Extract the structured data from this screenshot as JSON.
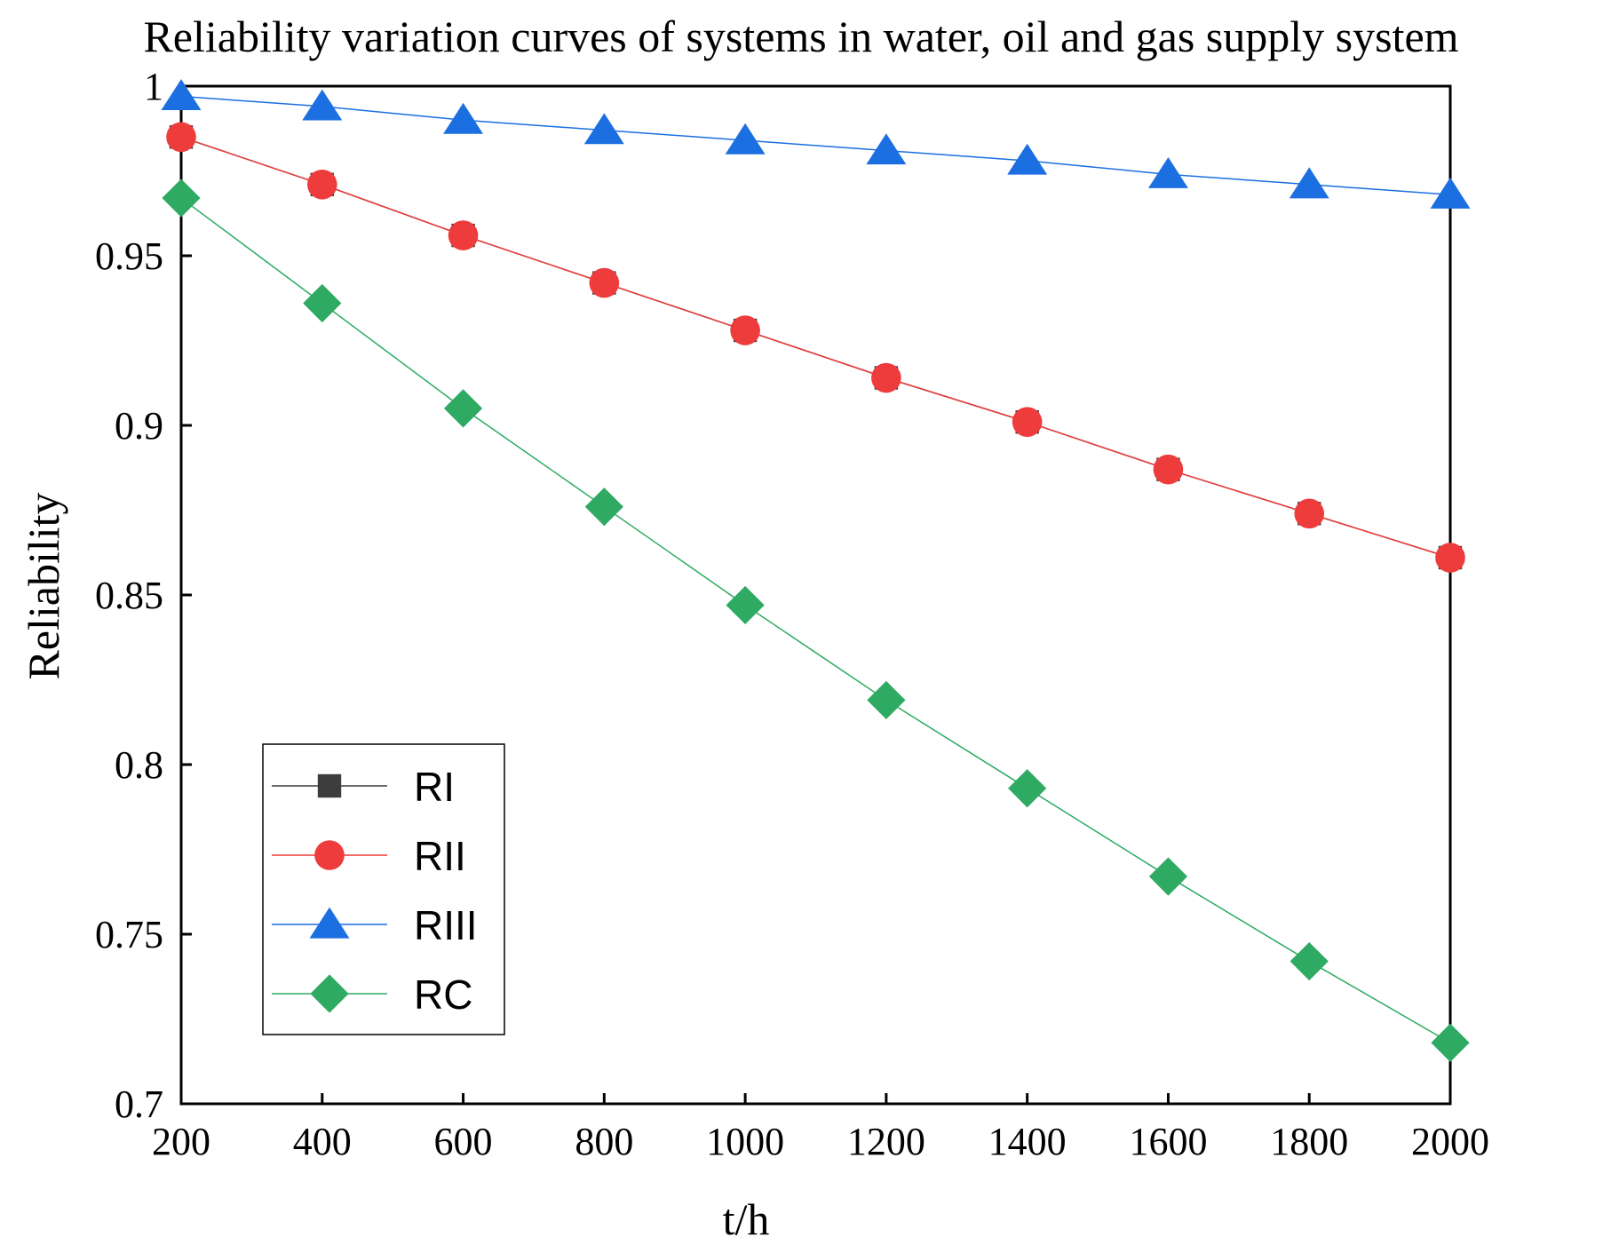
{
  "chart_data": {
    "type": "line",
    "title": "Reliability variation curves of systems in water, oil and gas supply system",
    "xlabel": "t/h",
    "ylabel": "Reliability",
    "x": [
      200,
      400,
      600,
      800,
      1000,
      1200,
      1400,
      1600,
      1800,
      2000
    ],
    "xlim": [
      200,
      2000
    ],
    "ylim": [
      0.7,
      1
    ],
    "xticks": [
      200,
      400,
      600,
      800,
      1000,
      1200,
      1400,
      1600,
      1800,
      2000
    ],
    "xtick_labels": [
      "200",
      "400",
      "600",
      "800",
      "1000",
      "1200",
      "1400",
      "1600",
      "1800",
      "2000"
    ],
    "yticks": [
      0.7,
      0.75,
      0.8,
      0.85,
      0.9,
      0.95,
      1
    ],
    "ytick_labels": [
      "0.7",
      "0.75",
      "0.8",
      "0.85",
      "0.9",
      "0.95",
      "1"
    ],
    "grid": false,
    "legend_position": "bottom-left",
    "series": [
      {
        "name": "RI",
        "color": "#3d3d3d",
        "marker": "square",
        "values": [
          0.985,
          0.971,
          0.956,
          0.942,
          0.928,
          0.914,
          0.901,
          0.887,
          0.874,
          0.861
        ]
      },
      {
        "name": "RII",
        "color": "#ee3b3b",
        "marker": "circle",
        "values": [
          0.985,
          0.971,
          0.956,
          0.942,
          0.928,
          0.914,
          0.901,
          0.887,
          0.874,
          0.861
        ]
      },
      {
        "name": "RIII",
        "color": "#1c6fe0",
        "marker": "triangle",
        "values": [
          0.997,
          0.994,
          0.99,
          0.987,
          0.984,
          0.981,
          0.978,
          0.974,
          0.971,
          0.968
        ]
      },
      {
        "name": "RC",
        "color": "#2eaa62",
        "marker": "diamond",
        "values": [
          0.967,
          0.936,
          0.905,
          0.876,
          0.847,
          0.819,
          0.793,
          0.767,
          0.742,
          0.718
        ]
      }
    ]
  }
}
